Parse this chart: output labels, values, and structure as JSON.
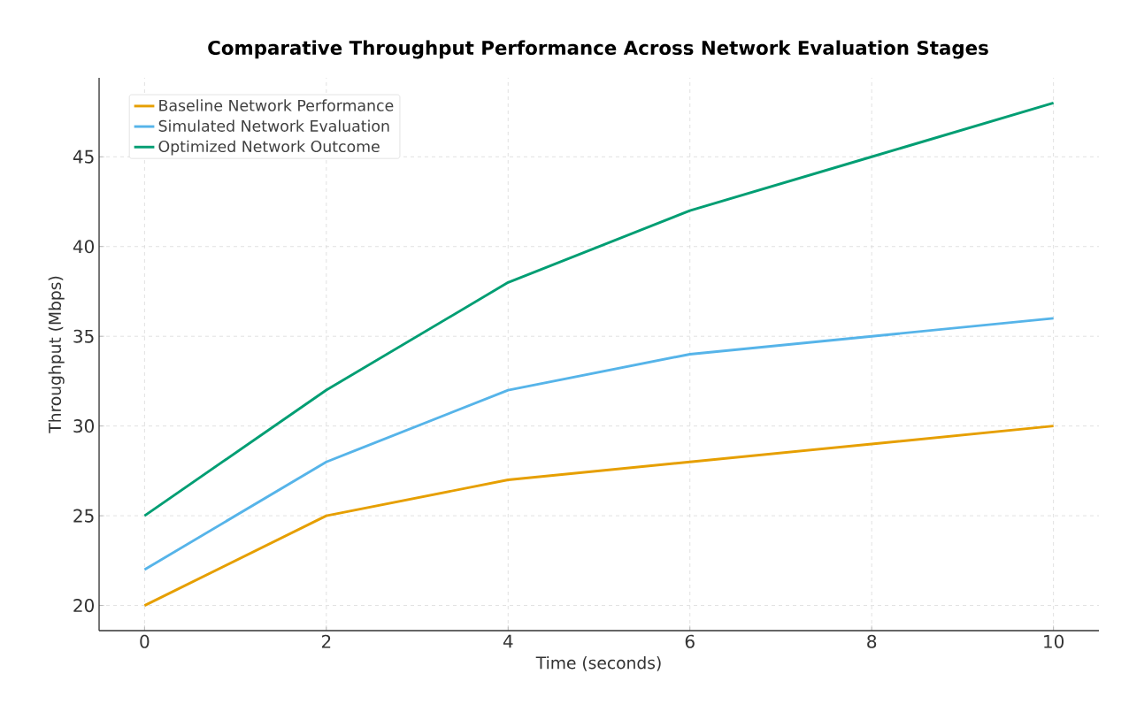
{
  "chart_data": {
    "type": "line",
    "title": "Comparative Throughput Performance Across Network Evaluation Stages",
    "xlabel": "Time (seconds)",
    "ylabel": "Throughput (Mbps)",
    "x": [
      0,
      2,
      4,
      6,
      8,
      10
    ],
    "series": [
      {
        "name": "Baseline Network Performance",
        "color": "#e69f00",
        "values": [
          20,
          25,
          27,
          28,
          29,
          30
        ]
      },
      {
        "name": "Simulated Network Evaluation",
        "color": "#56b4e9",
        "values": [
          22,
          28,
          32,
          34,
          35,
          36
        ]
      },
      {
        "name": "Optimized Network Outcome",
        "color": "#009e73",
        "values": [
          25,
          32,
          38,
          42,
          45,
          48
        ]
      }
    ],
    "xlim": [
      -0.5,
      10.5
    ],
    "ylim": [
      18.6,
      49.4
    ],
    "xticks": [
      0,
      2,
      4,
      6,
      8,
      10
    ],
    "yticks": [
      20,
      25,
      30,
      35,
      40,
      45
    ],
    "grid": true,
    "legend": "top left",
    "marker": "none",
    "line_style": "solid"
  }
}
